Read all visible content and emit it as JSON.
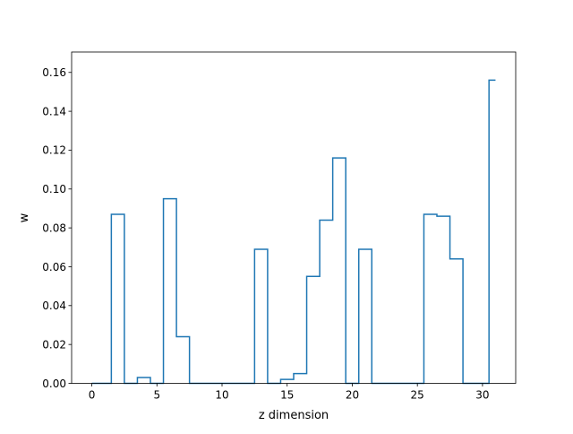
{
  "chart_data": {
    "type": "step",
    "title": "",
    "xlabel": "z dimension",
    "ylabel": "w",
    "xlim": [
      -1.55,
      32.55
    ],
    "ylim": [
      0.0,
      0.1705
    ],
    "xticks": [
      0,
      5,
      10,
      15,
      20,
      25,
      30
    ],
    "yticks": [
      0.0,
      0.02,
      0.04,
      0.06,
      0.08,
      0.1,
      0.12,
      0.14,
      0.16
    ],
    "ytick_labels": [
      "0.00",
      "0.02",
      "0.04",
      "0.06",
      "0.08",
      "0.10",
      "0.12",
      "0.14",
      "0.16"
    ],
    "xtick_labels": [
      "0",
      "5",
      "10",
      "15",
      "20",
      "25",
      "30"
    ],
    "step_where": "mid",
    "color": "#1f77b4",
    "grid": false,
    "series": [
      {
        "x": [
          0,
          1,
          2,
          3,
          4,
          5,
          6,
          7,
          8,
          9,
          10,
          11,
          12,
          13,
          14,
          15,
          16,
          17,
          18,
          19,
          20,
          21,
          22,
          23,
          24,
          25,
          26,
          27,
          28,
          29,
          30,
          31
        ],
        "values": [
          0.0,
          0.0,
          0.087,
          0.0,
          0.003,
          0.0,
          0.095,
          0.024,
          0.0,
          0.0,
          0.0,
          0.0,
          0.0,
          0.069,
          0.0,
          0.002,
          0.005,
          0.055,
          0.084,
          0.116,
          0.0,
          0.069,
          0.0,
          0.0,
          0.0,
          0.0,
          0.087,
          0.086,
          0.064,
          0.0,
          0.0,
          0.156
        ]
      }
    ]
  }
}
